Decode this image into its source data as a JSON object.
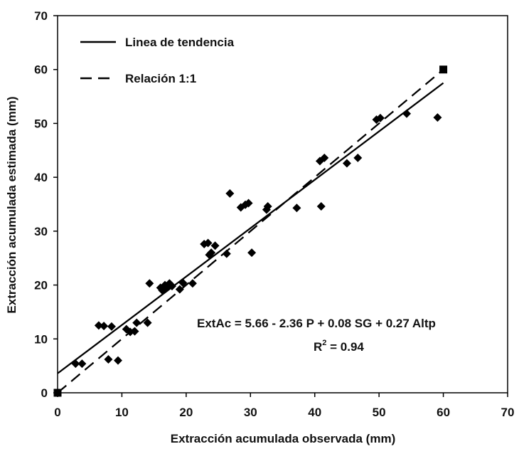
{
  "chart_data": {
    "type": "scatter",
    "xlabel": "Extracción acumulada observada (mm)",
    "ylabel": "Extracción acumulada estimada (mm)",
    "xlim": [
      0,
      70
    ],
    "ylim": [
      0,
      70
    ],
    "xticks": [
      "0",
      "10",
      "20",
      "30",
      "40",
      "50",
      "60",
      "70"
    ],
    "yticks": [
      "0",
      "10",
      "20",
      "30",
      "40",
      "50",
      "60",
      "70"
    ],
    "grid": false,
    "legend_position": "top-left",
    "legend": [
      {
        "label": "Linea de tendencia",
        "style": "solid"
      },
      {
        "label": "Relación 1:1",
        "style": "dashed"
      }
    ],
    "annotations": {
      "equation": "ExtAc = 5.66 - 2.36 P + 0.08 SG + 0.27 Altp",
      "r2_prefix": "R",
      "r2_sup": "2",
      "r2_value": " = 0.94"
    },
    "series": [
      {
        "marker": "diamond",
        "points": [
          [
            2.8,
            5.4
          ],
          [
            3.8,
            5.4
          ],
          [
            6.4,
            12.5
          ],
          [
            7.2,
            12.4
          ],
          [
            7.9,
            6.2
          ],
          [
            8.4,
            12.3
          ],
          [
            9.4,
            6.0
          ],
          [
            10.7,
            11.8
          ],
          [
            11.3,
            11.3
          ],
          [
            12.0,
            11.4
          ],
          [
            12.3,
            13.0
          ],
          [
            14.0,
            13.0
          ],
          [
            14.3,
            20.3
          ],
          [
            16.0,
            19.5
          ],
          [
            16.3,
            19.0
          ],
          [
            16.7,
            20.0
          ],
          [
            17.0,
            19.5
          ],
          [
            17.4,
            20.3
          ],
          [
            17.8,
            19.8
          ],
          [
            19.0,
            19.2
          ],
          [
            19.5,
            20.4
          ],
          [
            21.0,
            20.3
          ],
          [
            22.8,
            27.6
          ],
          [
            23.4,
            27.8
          ],
          [
            23.6,
            25.6
          ],
          [
            23.9,
            26.0
          ],
          [
            24.5,
            27.3
          ],
          [
            26.3,
            25.8
          ],
          [
            26.8,
            37.0
          ],
          [
            28.5,
            34.4
          ],
          [
            29.2,
            34.9
          ],
          [
            29.7,
            35.2
          ],
          [
            30.2,
            26.0
          ],
          [
            32.5,
            34.0
          ],
          [
            32.7,
            34.6
          ],
          [
            37.2,
            34.3
          ],
          [
            40.8,
            43.0
          ],
          [
            41.0,
            34.6
          ],
          [
            41.5,
            43.6
          ],
          [
            45.0,
            42.6
          ],
          [
            46.7,
            43.6
          ],
          [
            49.6,
            50.7
          ],
          [
            50.2,
            51.0
          ],
          [
            54.3,
            51.8
          ],
          [
            59.1,
            51.1
          ]
        ]
      },
      {
        "marker": "square",
        "points": [
          [
            0,
            0
          ],
          [
            60,
            60
          ]
        ]
      }
    ],
    "lines": [
      {
        "name": "trend",
        "style": "solid",
        "from": [
          0,
          3.6
        ],
        "to": [
          60,
          57.5
        ]
      },
      {
        "name": "one-to-one",
        "style": "dashed",
        "from": [
          0,
          0
        ],
        "to": [
          60,
          60
        ]
      }
    ]
  }
}
